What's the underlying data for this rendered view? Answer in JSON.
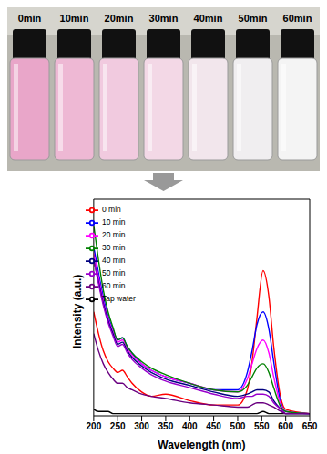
{
  "photo": {
    "labels": [
      "0min",
      "10min",
      "20min",
      "30min",
      "40min",
      "50min",
      "60min"
    ],
    "colors": [
      "#e9a6c9",
      "#eeb8d4",
      "#f1cadf",
      "#f3d8e6",
      "#f2e6ec",
      "#f0eef0",
      "#f4f4f4"
    ]
  },
  "chart_data": {
    "type": "line",
    "x_label": "Wavelength (nm)",
    "y_label": "Intensity (a.u.)",
    "x": [
      200,
      210,
      220,
      230,
      240,
      250,
      260,
      270,
      280,
      300,
      320,
      350,
      400,
      450,
      500,
      520,
      530,
      540,
      553,
      565,
      575,
      590,
      600,
      650
    ],
    "xlim": [
      200,
      650
    ],
    "xticks": [
      200,
      250,
      300,
      350,
      400,
      450,
      500,
      550,
      600,
      650
    ],
    "ylim": [
      0,
      100
    ],
    "tick_labels": "x",
    "legend": "upper left",
    "series": [
      {
        "name": "Tap water",
        "color": "#000000",
        "values": [
          3,
          2,
          2,
          2,
          1,
          1,
          1,
          1,
          1,
          1,
          1,
          1,
          1,
          1,
          1,
          1,
          1,
          1,
          2,
          1,
          1,
          1,
          1,
          1
        ]
      },
      {
        "name": "0 min",
        "color": "#ff0000",
        "values": [
          48,
          38,
          30,
          25,
          22,
          20,
          21,
          18,
          15,
          11,
          9,
          10,
          7,
          5,
          5,
          12,
          25,
          45,
          67,
          55,
          32,
          8,
          3,
          1
        ]
      },
      {
        "name": "10 min",
        "color": "#0000ff",
        "values": [
          78,
          66,
          55,
          46,
          40,
          35,
          36,
          32,
          29,
          24,
          21,
          18,
          15,
          12,
          12,
          20,
          30,
          42,
          48,
          40,
          25,
          6,
          2,
          1
        ]
      },
      {
        "name": "20 min",
        "color": "#ff00ff",
        "values": [
          75,
          64,
          53,
          45,
          39,
          34,
          35,
          31,
          28,
          24,
          21,
          18,
          15,
          12,
          11,
          17,
          24,
          31,
          35,
          29,
          18,
          5,
          2,
          1
        ]
      },
      {
        "name": "30 min",
        "color": "#008000",
        "values": [
          88,
          72,
          58,
          48,
          41,
          35,
          36,
          32,
          29,
          25,
          22,
          19,
          15,
          12,
          11,
          14,
          18,
          22,
          24,
          20,
          13,
          4,
          2,
          1
        ]
      },
      {
        "name": "40 min",
        "color": "#000080",
        "values": [
          72,
          62,
          52,
          44,
          38,
          33,
          34,
          30,
          27,
          23,
          20,
          17,
          14,
          11,
          9,
          10,
          11,
          12,
          12,
          11,
          7,
          3,
          1,
          1
        ]
      },
      {
        "name": "50 min",
        "color": "#9900cc",
        "values": [
          72,
          61,
          51,
          43,
          37,
          32,
          33,
          29,
          26,
          22,
          19,
          16,
          13,
          10,
          8,
          9,
          9,
          10,
          10,
          9,
          6,
          3,
          1,
          1
        ]
      },
      {
        "name": "60 min",
        "color": "#6a0080",
        "values": [
          38,
          30,
          24,
          20,
          17,
          15,
          15,
          13,
          12,
          10,
          9,
          8,
          6,
          5,
          4,
          4,
          5,
          6,
          6,
          5,
          4,
          2,
          1,
          1
        ]
      }
    ]
  }
}
